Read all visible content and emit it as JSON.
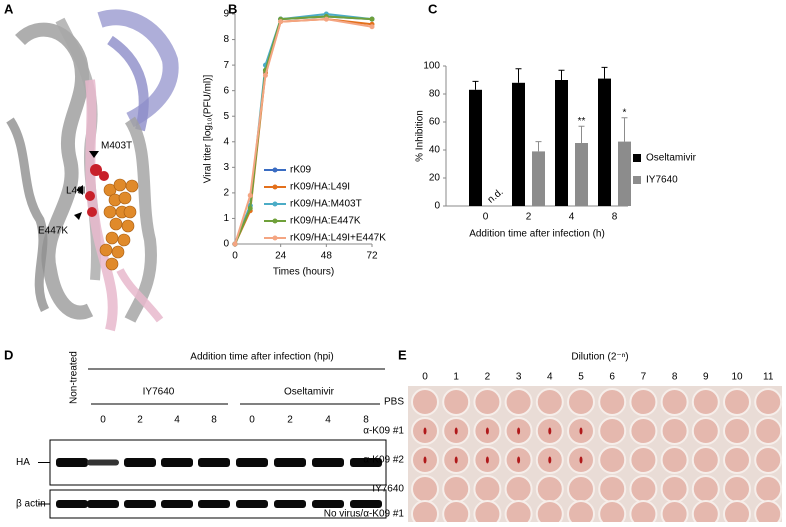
{
  "panel_labels": [
    "A",
    "B",
    "C",
    "D",
    "E"
  ],
  "structure": {
    "labels": [
      "M403T",
      "L49I",
      "E447K"
    ]
  },
  "chart_data": [
    {
      "type": "line",
      "x": [
        0,
        8,
        16,
        24,
        48,
        72
      ],
      "xlim": [
        0,
        72
      ],
      "xticks": [
        0,
        24,
        48,
        72
      ],
      "ylim": [
        0,
        9
      ],
      "yticks": [
        0,
        1,
        2,
        3,
        4,
        5,
        6,
        7,
        8,
        9
      ],
      "x_label": "Times (hours)",
      "y_label": "Viral titer [log₁₀(PFU/ml)]",
      "series": [
        {
          "name": "rK09",
          "color": "#3a6cc2",
          "values": [
            0,
            1.5,
            6.8,
            8.8,
            8.9,
            8.8
          ]
        },
        {
          "name": "rK09/HA:L49I",
          "color": "#e3701c",
          "values": [
            0,
            1.3,
            6.7,
            8.7,
            8.8,
            8.6
          ]
        },
        {
          "name": "rK09/HA:M403T",
          "color": "#4bacc6",
          "values": [
            0,
            1.5,
            7.0,
            8.8,
            9.0,
            8.8
          ]
        },
        {
          "name": "rK09/HA:E447K",
          "color": "#6fa03a",
          "values": [
            0,
            1.4,
            6.8,
            8.8,
            8.9,
            8.8
          ]
        },
        {
          "name": "rK09/HA:L49I+E447K",
          "color": "#f4a582",
          "values": [
            0,
            1.9,
            6.6,
            8.7,
            8.8,
            8.5
          ]
        }
      ]
    },
    {
      "type": "bar",
      "categories": [
        "0",
        "2",
        "4",
        "8"
      ],
      "ylim": [
        0,
        100
      ],
      "yticks": [
        0,
        20,
        40,
        60,
        80,
        100
      ],
      "x_label": "Addition time after infection (h)",
      "y_label": "% Inhibition",
      "nd_label": "n.d.",
      "series": [
        {
          "name": "Oseltamivir",
          "color": "#000000",
          "values": [
            83,
            88,
            90,
            91
          ],
          "errors": [
            6,
            10,
            7,
            8
          ],
          "significance": [
            null,
            null,
            null,
            null
          ]
        },
        {
          "name": "IY7640",
          "color": "#8c8c8c",
          "values": [
            null,
            39,
            45,
            46
          ],
          "errors": [
            null,
            7,
            12,
            17
          ],
          "significance": [
            null,
            null,
            "**",
            "*"
          ]
        }
      ]
    }
  ],
  "blot": {
    "title": "Addition time after infection (hpi)",
    "control": "Non-treated",
    "groups": [
      "IY7640",
      "Oseltamivir"
    ],
    "times": [
      "0",
      "2",
      "4",
      "8"
    ],
    "rows": [
      "HA",
      "β actin"
    ]
  },
  "plate": {
    "title": "Dilution (2⁻ⁿ)",
    "columns": [
      "0",
      "1",
      "2",
      "3",
      "4",
      "5",
      "6",
      "7",
      "8",
      "9",
      "10",
      "11"
    ],
    "rows": [
      "PBS",
      "α-K09 #1",
      "α-K09 #2",
      "IY7640",
      "No virus/α-K09 #1"
    ]
  }
}
